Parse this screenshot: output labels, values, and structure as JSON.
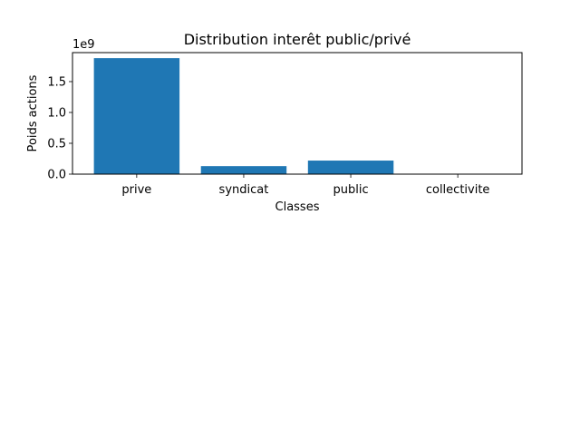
{
  "chart_data": {
    "type": "bar",
    "title": "Distribution interêt public/privé",
    "xlabel": "Classes",
    "ylabel": "Poids actions",
    "offset_label": "1e9",
    "categories": [
      "prive",
      "syndicat",
      "public",
      "collectivite"
    ],
    "values": [
      1.88,
      0.13,
      0.22,
      0.0
    ],
    "value_scale": 1000000000,
    "ylim": [
      0,
      1.97
    ],
    "yticks": [
      0.0,
      0.5,
      1.0,
      1.5
    ],
    "ytick_labels": [
      "0.0",
      "0.5",
      "1.0",
      "1.5"
    ],
    "grid": false,
    "legend": "none",
    "bar_color": "#1f77b4"
  }
}
